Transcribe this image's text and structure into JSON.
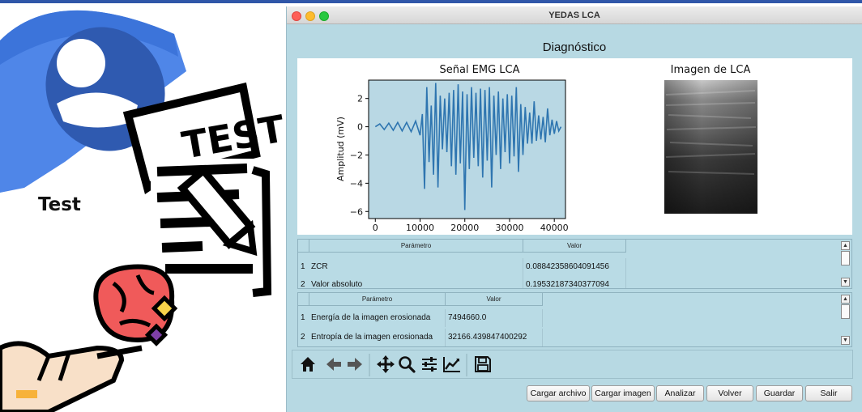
{
  "slide": {
    "label": "Test",
    "test_sheet_text": "TEST",
    "colors": {
      "accent_blue": "#2f56a8",
      "card_blue": "#4f86e8",
      "brain_red": "#f05a5a",
      "gem_yellow": "#f7d34a",
      "gem_purple": "#7e3fa8"
    },
    "icons": [
      "user-card-icon",
      "test-sheet-icon",
      "brain-hand-icon"
    ]
  },
  "window": {
    "title": "YEDAS LCA",
    "heading": "Diagnóstico"
  },
  "figure": {
    "emg_title": "Señal EMG LCA",
    "image_title": "Imagen de LCA"
  },
  "chart_data": {
    "type": "line",
    "title": "Señal EMG LCA",
    "xlabel": "",
    "ylabel": "Amplitud (mV)",
    "xlim": [
      -1500,
      42500
    ],
    "ylim": [
      -6.5,
      3.3
    ],
    "xticks": [
      0,
      10000,
      20000,
      30000,
      40000
    ],
    "yticks": [
      -6,
      -4,
      -2,
      0,
      2
    ],
    "line_color": "#2e75b0",
    "series": [
      {
        "x": [
          0,
          1000,
          2000,
          3000,
          4000,
          5000,
          6000,
          7000,
          8000,
          9000,
          10000,
          10500,
          11000,
          11500,
          12000,
          12500,
          13000,
          13500,
          14000,
          14500,
          15000,
          15500,
          16000,
          16500,
          17000,
          17500,
          18000,
          18500,
          19000,
          19500,
          20000,
          20500,
          21000,
          21500,
          22000,
          22500,
          23000,
          23500,
          24000,
          24500,
          25000,
          25500,
          26000,
          26500,
          27000,
          27500,
          28000,
          28500,
          29000,
          29500,
          30000,
          30500,
          31000,
          31500,
          32000,
          32500,
          33000,
          33500,
          34000,
          34500,
          35000,
          35500,
          36000,
          36500,
          37000,
          37500,
          38000,
          38500,
          39000,
          39500,
          40000,
          40500,
          41000,
          41500
        ],
        "y": [
          0.0,
          0.2,
          -0.2,
          0.25,
          -0.25,
          0.3,
          -0.3,
          0.3,
          -0.35,
          0.4,
          -0.6,
          0.9,
          -4.4,
          2.8,
          -2.5,
          1.5,
          -3.4,
          3.1,
          -4.3,
          2.2,
          -1.6,
          2.0,
          -1.8,
          2.4,
          -2.8,
          2.6,
          -3.4,
          3.0,
          -2.6,
          2.5,
          -5.9,
          2.3,
          -3.0,
          2.8,
          -2.2,
          2.4,
          -2.8,
          2.7,
          -3.6,
          2.6,
          -2.4,
          2.8,
          -4.3,
          2.2,
          -2.0,
          2.5,
          -3.0,
          2.0,
          -1.8,
          2.3,
          -2.6,
          2.2,
          -2.1,
          2.8,
          -3.2,
          1.6,
          -2.0,
          1.4,
          -1.2,
          1.0,
          -1.2,
          1.8,
          -1.0,
          0.8,
          -0.9,
          0.7,
          -1.1,
          1.3,
          -0.6,
          0.5,
          -0.5,
          0.4,
          -0.3,
          0.0
        ]
      }
    ]
  },
  "table1": {
    "headers": [
      "Parámetro",
      "Valor"
    ],
    "rows": [
      {
        "index": "1",
        "param": "ZCR",
        "value": "0.08842358604091456"
      },
      {
        "index": "2",
        "param": "Valor absoluto",
        "value": "0.19532187340377094"
      }
    ]
  },
  "table2": {
    "headers": [
      "Parámetro",
      "Valor"
    ],
    "rows": [
      {
        "index": "1",
        "param": "Energía de la imagen erosionada",
        "value": "7494660.0"
      },
      {
        "index": "2",
        "param": "Entropía de la imagen erosionada",
        "value": "32166.439847400292"
      }
    ]
  },
  "scroll": {
    "up": "▲",
    "down": "▼"
  },
  "toolbar": {
    "icons": [
      "home-icon",
      "back-arrow-icon",
      "forward-arrow-icon",
      "pan-icon",
      "zoom-icon",
      "configure-subplots-icon",
      "edit-axes-icon",
      "save-figure-icon"
    ]
  },
  "buttons": {
    "load_file": "Cargar archivo",
    "load_image": "Cargar imagen",
    "analyze": "Analizar",
    "back": "Volver",
    "save": "Guardar",
    "exit": "Salir"
  }
}
